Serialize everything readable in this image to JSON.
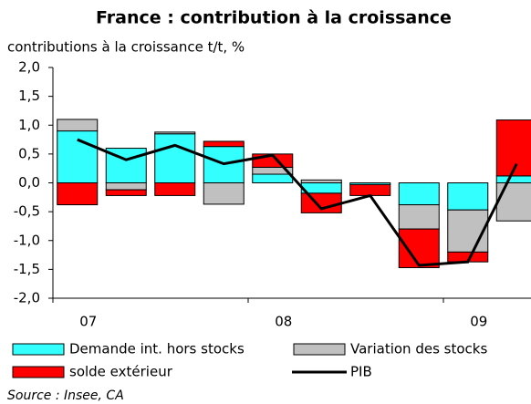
{
  "chart_data": {
    "type": "bar",
    "title": "France : contribution à la croissance",
    "subtitle": "contributions à la croissance t/t, %",
    "source": "Source : Insee, CA",
    "stacked": true,
    "categories": [
      "07",
      null,
      null,
      null,
      "08",
      null,
      null,
      null,
      "09",
      null
    ],
    "series": [
      {
        "name": "Demande int. hors stocks",
        "color": "#33ffff",
        "values": [
          0.9,
          0.6,
          0.85,
          0.63,
          0.15,
          -0.18,
          -0.03,
          -0.38,
          -0.47,
          0.12
        ]
      },
      {
        "name": "Variation des stocks",
        "color": "#c0c0c0",
        "values": [
          0.2,
          -0.12,
          0.03,
          -0.37,
          0.12,
          0.05,
          0,
          -0.42,
          -0.73,
          -0.66
        ]
      },
      {
        "name": "solde extérieur",
        "color": "#ff0000",
        "values": [
          -0.38,
          -0.1,
          -0.22,
          0.09,
          0.23,
          -0.34,
          -0.19,
          -0.67,
          -0.17,
          0.97
        ]
      },
      {
        "name": "PIB",
        "color": "#000000",
        "type": "line",
        "values": [
          0.75,
          0.4,
          0.65,
          0.33,
          0.48,
          -0.45,
          -0.22,
          -1.43,
          -1.37,
          0.33
        ]
      }
    ],
    "ylim": [
      -2.0,
      2.0
    ],
    "yticks": [
      {
        "value": 2,
        "label": "2,0"
      },
      {
        "value": 1.5,
        "label": "1,5"
      },
      {
        "value": 1,
        "label": "1,0"
      },
      {
        "value": 0.5,
        "label": "0,5"
      },
      {
        "value": 0,
        "label": "0,0"
      },
      {
        "value": -0.5,
        "label": "-0,5"
      },
      {
        "value": -1,
        "label": "-1,0"
      },
      {
        "value": -1.5,
        "label": "-1,5"
      },
      {
        "value": -2,
        "label": "-2,0"
      }
    ]
  }
}
